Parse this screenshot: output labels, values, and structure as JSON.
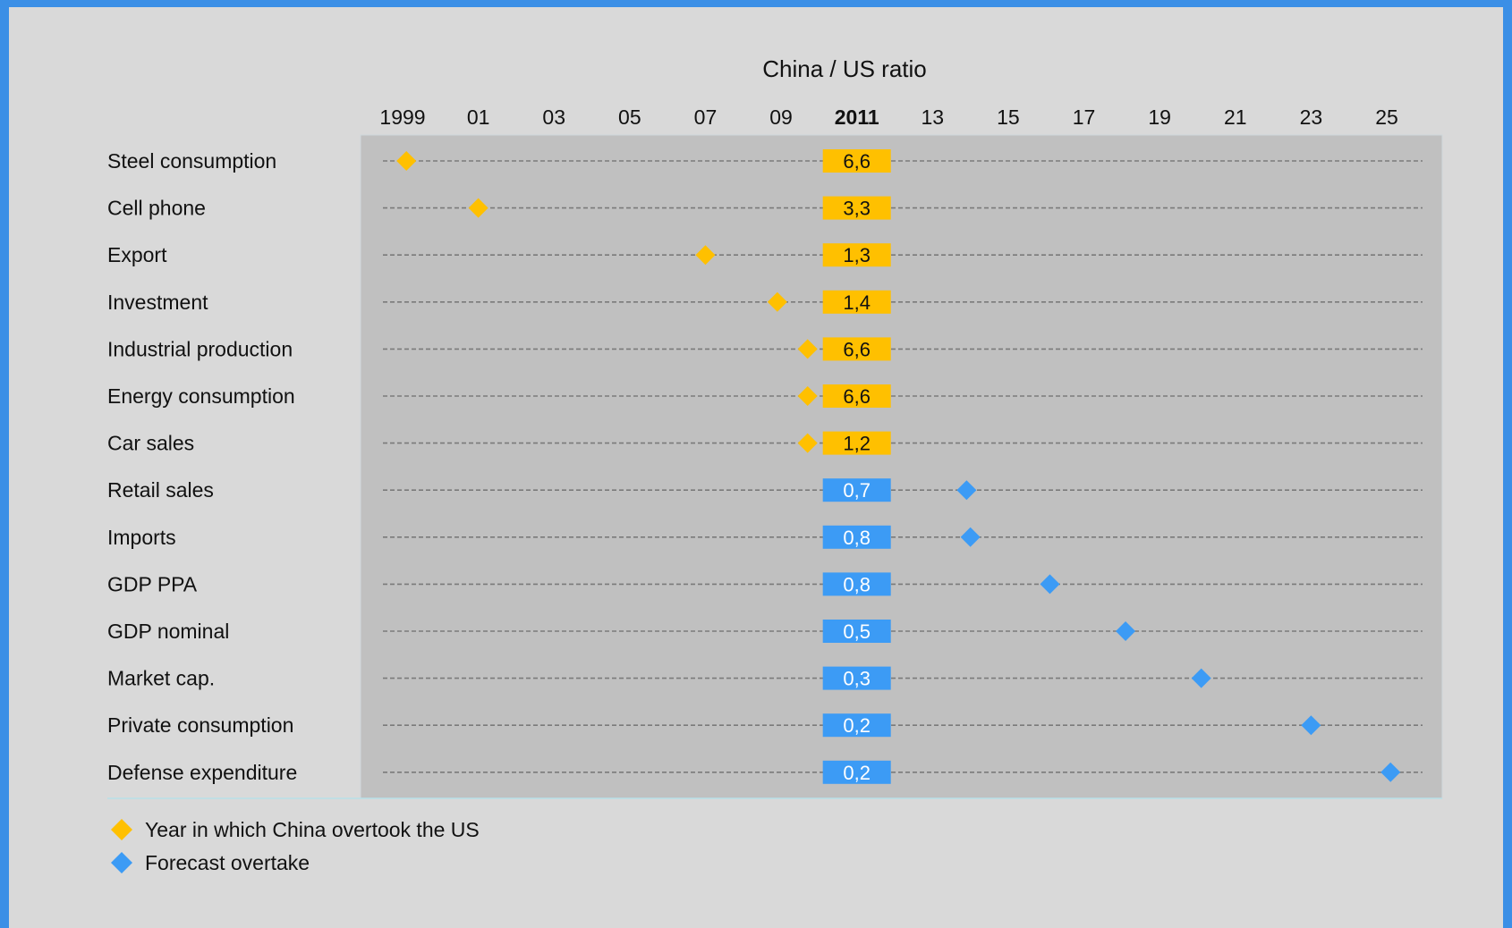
{
  "chart_data": {
    "type": "scatter",
    "title": "China / US ratio",
    "x_ticks": [
      "1999",
      "01",
      "03",
      "05",
      "07",
      "09",
      "2011",
      "13",
      "15",
      "17",
      "19",
      "21",
      "23",
      "25"
    ],
    "x_tick_values": [
      1999,
      2001,
      2003,
      2005,
      2007,
      2009,
      2011,
      2013,
      2015,
      2017,
      2019,
      2021,
      2023,
      2025
    ],
    "highlight_tick": "2011",
    "xlim": [
      1999,
      2025
    ],
    "rows": [
      {
        "label": "Steel consumption",
        "year": 1999.1,
        "ratio": "6,6",
        "status": "overtaken"
      },
      {
        "label": "Cell phone",
        "year": 2001.0,
        "ratio": "3,3",
        "status": "overtaken"
      },
      {
        "label": "Export",
        "year": 2007.0,
        "ratio": "1,3",
        "status": "overtaken"
      },
      {
        "label": "Investment",
        "year": 2008.9,
        "ratio": "1,4",
        "status": "overtaken"
      },
      {
        "label": "Industrial production",
        "year": 2009.7,
        "ratio": "6,6",
        "status": "overtaken"
      },
      {
        "label": "Energy consumption",
        "year": 2009.7,
        "ratio": "6,6",
        "status": "overtaken"
      },
      {
        "label": "Car sales",
        "year": 2009.7,
        "ratio": "1,2",
        "status": "overtaken"
      },
      {
        "label": "Retail sales",
        "year": 2013.9,
        "ratio": "0,7",
        "status": "forecast"
      },
      {
        "label": "Imports",
        "year": 2014.0,
        "ratio": "0,8",
        "status": "forecast"
      },
      {
        "label": "GDP PPA",
        "year": 2016.1,
        "ratio": "0,8",
        "status": "forecast"
      },
      {
        "label": "GDP nominal",
        "year": 2018.1,
        "ratio": "0,5",
        "status": "forecast"
      },
      {
        "label": "Market cap.",
        "year": 2020.1,
        "ratio": "0,3",
        "status": "forecast"
      },
      {
        "label": "Private consumption",
        "year": 2023.0,
        "ratio": "0,2",
        "status": "forecast"
      },
      {
        "label": "Defense expenditure",
        "year": 2025.1,
        "ratio": "0,2",
        "status": "forecast"
      }
    ],
    "legend": [
      {
        "label": "Year in which China overtook the US",
        "status": "overtaken"
      },
      {
        "label": "Forecast overtake",
        "status": "forecast"
      }
    ],
    "legend_position": "bottom-left",
    "colors": {
      "overtaken": "#ffc000",
      "forecast": "#3c9bf5",
      "plot_bg": "#c0c0c0",
      "page_bg": "#d9d9d9",
      "frame": "#3b8fe6",
      "dash": "#7a7a7a"
    }
  }
}
